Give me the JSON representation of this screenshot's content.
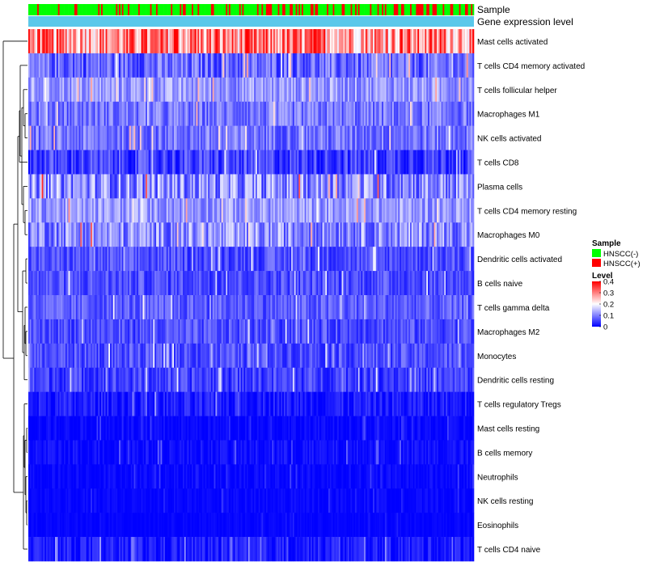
{
  "chart_data": {
    "type": "heatmap",
    "title": "",
    "annotation_tracks": [
      "Sample",
      "Gene expression level"
    ],
    "sample_legend": {
      "title": "Sample",
      "entries": [
        {
          "label": "HNSCC(-)",
          "color": "#00ff00"
        },
        {
          "label": "HNSCC(+)",
          "color": "#ff0000"
        }
      ]
    },
    "expression_track_color": "#5bc8ea",
    "level_legend": {
      "title": "Level",
      "ticks": [
        0.4,
        0.3,
        0.2,
        0.1,
        0
      ],
      "tick_labels": [
        "0.4",
        "0.3",
        "0.2",
        "0.1",
        "0"
      ],
      "range": [
        0,
        0.4
      ],
      "colors": [
        "#0000ff",
        "#ffffff",
        "#ff0000"
      ]
    },
    "n_samples": 300,
    "rows": [
      {
        "name": "Mast cells activated",
        "mean": 0.29,
        "spread": 0.11
      },
      {
        "name": "T cells CD4 memory activated",
        "mean": 0.08,
        "spread": 0.06
      },
      {
        "name": "T cells follicular helper",
        "mean": 0.12,
        "spread": 0.05
      },
      {
        "name": "Macrophages M1",
        "mean": 0.09,
        "spread": 0.05
      },
      {
        "name": "NK cells activated",
        "mean": 0.09,
        "spread": 0.05
      },
      {
        "name": "T cells CD8",
        "mean": 0.05,
        "spread": 0.05
      },
      {
        "name": "Plasma cells",
        "mean": 0.11,
        "spread": 0.08
      },
      {
        "name": "T cells CD4 memory resting",
        "mean": 0.12,
        "spread": 0.05
      },
      {
        "name": "Macrophages M0",
        "mean": 0.11,
        "spread": 0.07
      },
      {
        "name": "Dendritic cells activated",
        "mean": 0.06,
        "spread": 0.04
      },
      {
        "name": "B cells naive",
        "mean": 0.06,
        "spread": 0.04
      },
      {
        "name": "T cells gamma delta",
        "mean": 0.07,
        "spread": 0.04
      },
      {
        "name": "Macrophages M2",
        "mean": 0.06,
        "spread": 0.04
      },
      {
        "name": "Monocytes",
        "mean": 0.06,
        "spread": 0.04
      },
      {
        "name": "Dendritic cells resting",
        "mean": 0.05,
        "spread": 0.04
      },
      {
        "name": "T cells regulatory  Tregs",
        "mean": 0.02,
        "spread": 0.03
      },
      {
        "name": "Mast cells resting",
        "mean": 0.005,
        "spread": 0.015
      },
      {
        "name": "B cells memory",
        "mean": 0.01,
        "spread": 0.02
      },
      {
        "name": "Neutrophils",
        "mean": 0.005,
        "spread": 0.015
      },
      {
        "name": "NK cells resting",
        "mean": 0.004,
        "spread": 0.012
      },
      {
        "name": "Eosinophils",
        "mean": 0.002,
        "spread": 0.008
      },
      {
        "name": "T cells CD4 naive",
        "mean": 0.02,
        "spread": 0.03
      }
    ],
    "sample_groups_note": "Top track: per-sample group (mostly HNSCC(-) green, scattered HNSCC(+) red); second track: uniform gene expression level",
    "xlabel": "",
    "ylabel": ""
  }
}
